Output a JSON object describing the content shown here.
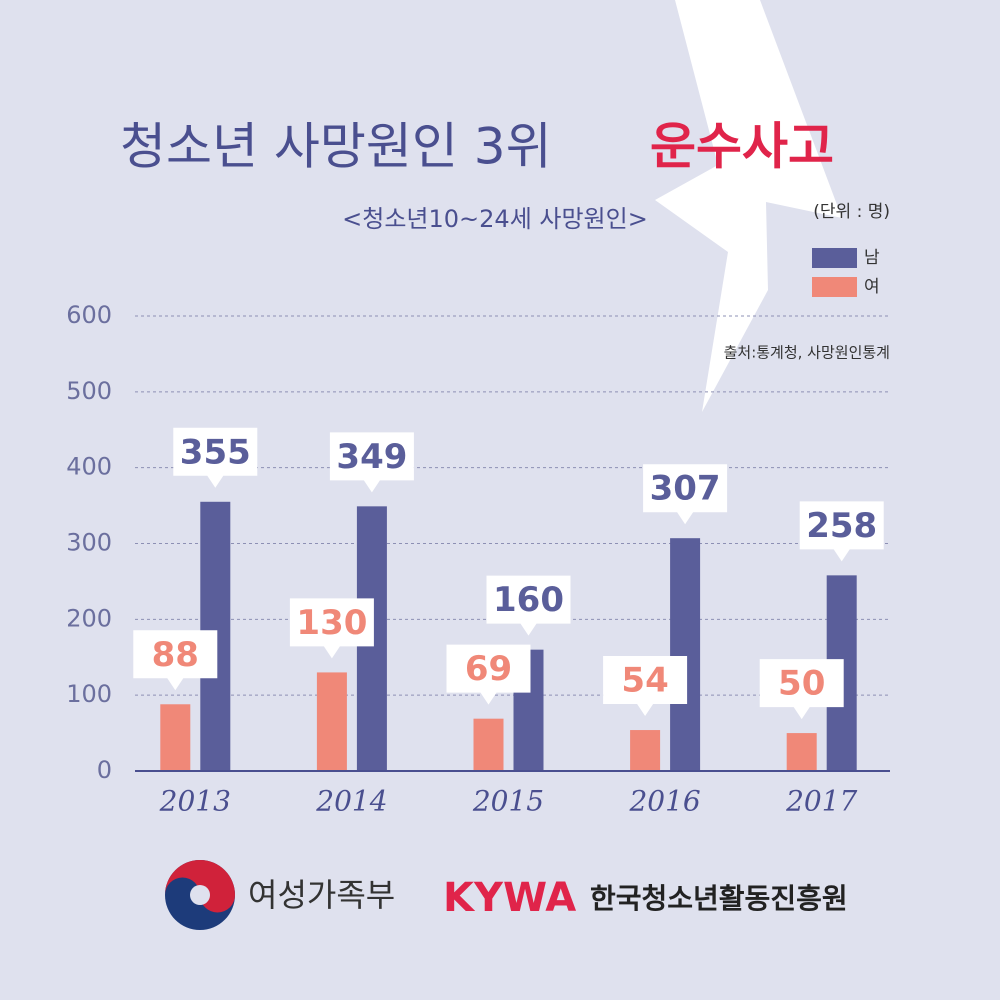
{
  "chart_data": {
    "type": "bar",
    "title": [
      "청소년 사망원인 3위",
      "운수사고"
    ],
    "subtitle": "<청소년10~24세 사망원인>",
    "unit": "(단위 : 명)",
    "source": "출처:통계청, 사망원인통계",
    "categories": [
      "2013",
      "2014",
      "2015",
      "2016",
      "2017"
    ],
    "series": [
      {
        "name": "남",
        "color": "#5a5e9a",
        "values": [
          355,
          349,
          160,
          307,
          258
        ]
      },
      {
        "name": "여",
        "color": "#f08878",
        "values": [
          88,
          130,
          69,
          54,
          50
        ]
      }
    ],
    "ylim": [
      0,
      600
    ],
    "yticks": [
      0,
      100,
      200,
      300,
      400,
      500,
      600
    ],
    "grid": true
  },
  "logos": [
    "여성가족부",
    "KYWA",
    "한국청소년활동진흥원"
  ]
}
